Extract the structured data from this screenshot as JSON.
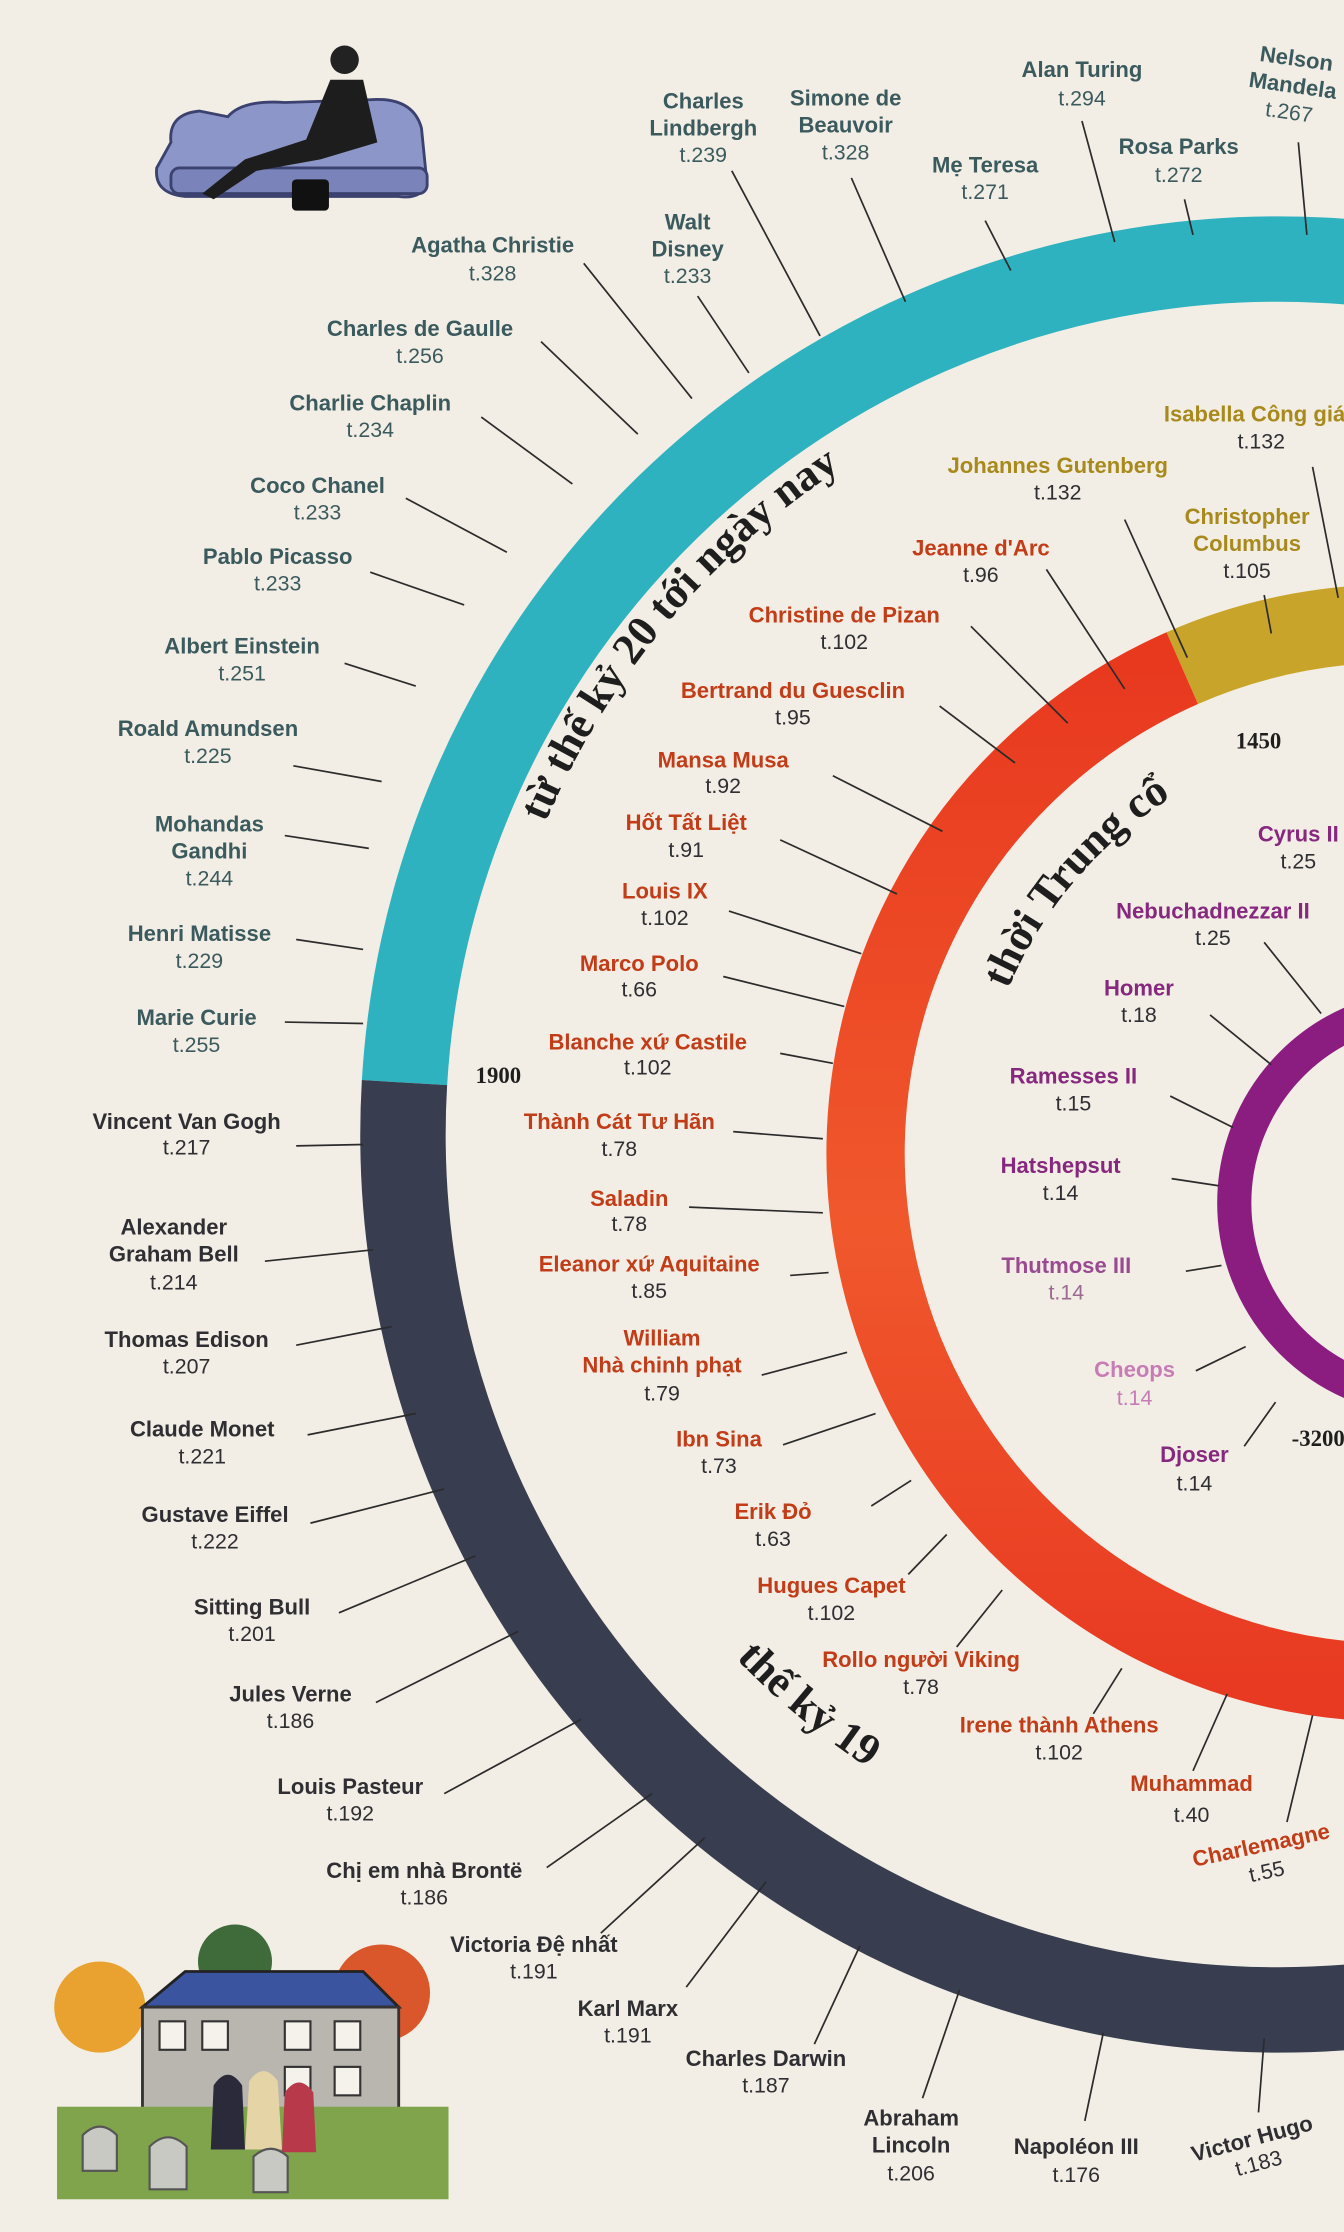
{
  "eras": [
    "từ thế kỷ 20 tới ngày nay",
    "thế kỷ 19",
    "thời Trung cổ"
  ],
  "years": [
    "1900",
    "1450",
    "-3200"
  ],
  "modern": [
    {
      "name": "Nelson\nMandela",
      "page": "t.267"
    },
    {
      "name": "Alan Turing",
      "page": "t.294"
    },
    {
      "name": "Rosa Parks",
      "page": "t.272"
    },
    {
      "name": "Mẹ Teresa",
      "page": "t.271"
    },
    {
      "name": "Simone de\nBeauvoir",
      "page": "t.328"
    },
    {
      "name": "Charles\nLindbergh",
      "page": "t.239"
    },
    {
      "name": "Walt\nDisney",
      "page": "t.233"
    },
    {
      "name": "Agatha Christie",
      "page": "t.328"
    },
    {
      "name": "Charles de Gaulle",
      "page": "t.256"
    },
    {
      "name": "Charlie Chaplin",
      "page": "t.234"
    },
    {
      "name": "Coco Chanel",
      "page": "t.233"
    },
    {
      "name": "Pablo Picasso",
      "page": "t.233"
    },
    {
      "name": "Albert Einstein",
      "page": "t.251"
    },
    {
      "name": "Roald Amundsen",
      "page": "t.225"
    },
    {
      "name": "Mohandas\nGandhi",
      "page": "t.244"
    },
    {
      "name": "Henri Matisse",
      "page": "t.229"
    },
    {
      "name": "Marie Curie",
      "page": "t.255"
    }
  ],
  "nineteenth": [
    {
      "name": "Vincent Van Gogh",
      "page": "t.217"
    },
    {
      "name": "Alexander\nGraham Bell",
      "page": "t.214"
    },
    {
      "name": "Thomas Edison",
      "page": "t.207"
    },
    {
      "name": "Claude Monet",
      "page": "t.221"
    },
    {
      "name": "Gustave Eiffel",
      "page": "t.222"
    },
    {
      "name": "Sitting Bull",
      "page": "t.201"
    },
    {
      "name": "Jules Verne",
      "page": "t.186"
    },
    {
      "name": "Louis Pasteur",
      "page": "t.192"
    },
    {
      "name": "Chị em nhà Brontë",
      "page": "t.186"
    },
    {
      "name": "Victoria Đệ nhất",
      "page": "t.191"
    },
    {
      "name": "Karl Marx",
      "page": "t.191"
    },
    {
      "name": "Charles Darwin",
      "page": "t.187"
    },
    {
      "name": "Abraham\nLincoln",
      "page": "t.206"
    },
    {
      "name": "Napoléon III",
      "page": "t.176"
    },
    {
      "name": "Victor Hugo",
      "page": "t.183"
    }
  ],
  "renaissance": [
    {
      "name": "Johannes Gutenberg",
      "page": "t.132"
    },
    {
      "name": "Isabella Công giáo",
      "page": "t.132"
    },
    {
      "name": "Christopher\nColumbus",
      "page": "t.105"
    }
  ],
  "medieval": [
    {
      "name": "Jeanne d'Arc",
      "page": "t.96"
    },
    {
      "name": "Christine de Pizan",
      "page": "t.102"
    },
    {
      "name": "Bertrand du Guesclin",
      "page": "t.95"
    },
    {
      "name": "Mansa Musa",
      "page": "t.92"
    },
    {
      "name": "Hốt Tất Liệt",
      "page": "t.91"
    },
    {
      "name": "Louis IX",
      "page": "t.102"
    },
    {
      "name": "Marco Polo",
      "page": "t.66"
    },
    {
      "name": "Blanche xứ Castile",
      "page": "t.102"
    },
    {
      "name": "Thành Cát Tư Hãn",
      "page": "t.78"
    },
    {
      "name": "Saladin",
      "page": "t.78"
    },
    {
      "name": "Eleanor xứ Aquitaine",
      "page": "t.85"
    },
    {
      "name": "William\nNhà chinh phạt",
      "page": "t.79"
    },
    {
      "name": "Ibn Sina",
      "page": "t.73"
    },
    {
      "name": "Erik Đỏ",
      "page": "t.63"
    },
    {
      "name": "Hugues Capet",
      "page": "t.102"
    },
    {
      "name": "Rollo người Viking",
      "page": "t.78"
    },
    {
      "name": "Irene thành Athens",
      "page": "t.102"
    },
    {
      "name": "Muhammad",
      "page": "t.40"
    },
    {
      "name": "Charlemagne",
      "page": "t.55"
    }
  ],
  "ancient": [
    {
      "name": "Cyrus II",
      "page": "t.25"
    },
    {
      "name": "Nebuchadnezzar II",
      "page": "t.25"
    },
    {
      "name": "Homer",
      "page": "t.18"
    },
    {
      "name": "Ramesses II",
      "page": "t.15"
    },
    {
      "name": "Hatshepsut",
      "page": "t.14"
    },
    {
      "name": "Thutmose III",
      "page": "t.14"
    },
    {
      "name": "Cheops",
      "page": "t.14"
    },
    {
      "name": "Djoser",
      "page": "t.14"
    }
  ]
}
